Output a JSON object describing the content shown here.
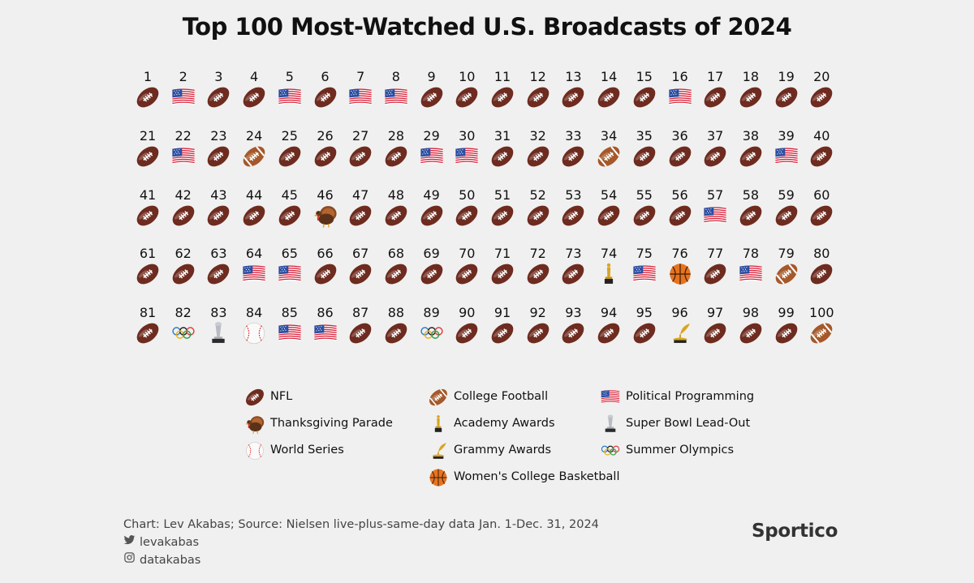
{
  "chart_data": {
    "type": "table",
    "title": "Top 100 Most-Watched U.S. Broadcasts of 2024",
    "ranks": [
      {
        "rank": "1",
        "category": "nfl"
      },
      {
        "rank": "2",
        "category": "political"
      },
      {
        "rank": "3",
        "category": "nfl"
      },
      {
        "rank": "4",
        "category": "nfl"
      },
      {
        "rank": "5",
        "category": "political"
      },
      {
        "rank": "6",
        "category": "nfl"
      },
      {
        "rank": "7",
        "category": "political"
      },
      {
        "rank": "8",
        "category": "political"
      },
      {
        "rank": "9",
        "category": "nfl"
      },
      {
        "rank": "10",
        "category": "nfl"
      },
      {
        "rank": "11",
        "category": "nfl"
      },
      {
        "rank": "12",
        "category": "nfl"
      },
      {
        "rank": "13",
        "category": "nfl"
      },
      {
        "rank": "14",
        "category": "nfl"
      },
      {
        "rank": "15",
        "category": "nfl"
      },
      {
        "rank": "16",
        "category": "political"
      },
      {
        "rank": "17",
        "category": "nfl"
      },
      {
        "rank": "18",
        "category": "nfl"
      },
      {
        "rank": "19",
        "category": "nfl"
      },
      {
        "rank": "20",
        "category": "nfl"
      },
      {
        "rank": "21",
        "category": "nfl"
      },
      {
        "rank": "22",
        "category": "political"
      },
      {
        "rank": "23",
        "category": "nfl"
      },
      {
        "rank": "24",
        "category": "college_football"
      },
      {
        "rank": "25",
        "category": "nfl"
      },
      {
        "rank": "26",
        "category": "nfl"
      },
      {
        "rank": "27",
        "category": "nfl"
      },
      {
        "rank": "28",
        "category": "nfl"
      },
      {
        "rank": "29",
        "category": "political"
      },
      {
        "rank": "30",
        "category": "political"
      },
      {
        "rank": "31",
        "category": "nfl"
      },
      {
        "rank": "32",
        "category": "nfl"
      },
      {
        "rank": "33",
        "category": "nfl"
      },
      {
        "rank": "34",
        "category": "college_football"
      },
      {
        "rank": "35",
        "category": "nfl"
      },
      {
        "rank": "36",
        "category": "nfl"
      },
      {
        "rank": "37",
        "category": "nfl"
      },
      {
        "rank": "38",
        "category": "nfl"
      },
      {
        "rank": "39",
        "category": "political"
      },
      {
        "rank": "40",
        "category": "nfl"
      },
      {
        "rank": "41",
        "category": "nfl"
      },
      {
        "rank": "42",
        "category": "nfl"
      },
      {
        "rank": "43",
        "category": "nfl"
      },
      {
        "rank": "44",
        "category": "nfl"
      },
      {
        "rank": "45",
        "category": "nfl"
      },
      {
        "rank": "46",
        "category": "thanksgiving"
      },
      {
        "rank": "47",
        "category": "nfl"
      },
      {
        "rank": "48",
        "category": "nfl"
      },
      {
        "rank": "49",
        "category": "nfl"
      },
      {
        "rank": "50",
        "category": "nfl"
      },
      {
        "rank": "51",
        "category": "nfl"
      },
      {
        "rank": "52",
        "category": "nfl"
      },
      {
        "rank": "53",
        "category": "nfl"
      },
      {
        "rank": "54",
        "category": "nfl"
      },
      {
        "rank": "55",
        "category": "nfl"
      },
      {
        "rank": "56",
        "category": "nfl"
      },
      {
        "rank": "57",
        "category": "political"
      },
      {
        "rank": "58",
        "category": "nfl"
      },
      {
        "rank": "59",
        "category": "nfl"
      },
      {
        "rank": "60",
        "category": "nfl"
      },
      {
        "rank": "61",
        "category": "nfl"
      },
      {
        "rank": "62",
        "category": "nfl"
      },
      {
        "rank": "63",
        "category": "nfl"
      },
      {
        "rank": "64",
        "category": "political"
      },
      {
        "rank": "65",
        "category": "political"
      },
      {
        "rank": "66",
        "category": "nfl"
      },
      {
        "rank": "67",
        "category": "nfl"
      },
      {
        "rank": "68",
        "category": "nfl"
      },
      {
        "rank": "69",
        "category": "nfl"
      },
      {
        "rank": "70",
        "category": "nfl"
      },
      {
        "rank": "71",
        "category": "nfl"
      },
      {
        "rank": "72",
        "category": "nfl"
      },
      {
        "rank": "73",
        "category": "nfl"
      },
      {
        "rank": "74",
        "category": "academy"
      },
      {
        "rank": "75",
        "category": "political"
      },
      {
        "rank": "76",
        "category": "womens_basketball"
      },
      {
        "rank": "77",
        "category": "nfl"
      },
      {
        "rank": "78",
        "category": "political"
      },
      {
        "rank": "79",
        "category": "college_football"
      },
      {
        "rank": "80",
        "category": "nfl"
      },
      {
        "rank": "81",
        "category": "nfl"
      },
      {
        "rank": "82",
        "category": "olympics"
      },
      {
        "rank": "83",
        "category": "super_bowl_leadout"
      },
      {
        "rank": "84",
        "category": "world_series"
      },
      {
        "rank": "85",
        "category": "political"
      },
      {
        "rank": "86",
        "category": "political"
      },
      {
        "rank": "87",
        "category": "nfl"
      },
      {
        "rank": "88",
        "category": "nfl"
      },
      {
        "rank": "89",
        "category": "olympics"
      },
      {
        "rank": "90",
        "category": "nfl"
      },
      {
        "rank": "91",
        "category": "nfl"
      },
      {
        "rank": "92",
        "category": "nfl"
      },
      {
        "rank": "93",
        "category": "nfl"
      },
      {
        "rank": "94",
        "category": "nfl"
      },
      {
        "rank": "95",
        "category": "nfl"
      },
      {
        "rank": "96",
        "category": "grammy"
      },
      {
        "rank": "97",
        "category": "nfl"
      },
      {
        "rank": "98",
        "category": "nfl"
      },
      {
        "rank": "99",
        "category": "nfl"
      },
      {
        "rank": "100",
        "category": "college_football"
      }
    ],
    "legend": [
      {
        "key": "nfl",
        "label": "NFL",
        "icon": "nfl-football-icon"
      },
      {
        "key": "thanksgiving",
        "label": "Thanksgiving Parade",
        "icon": "turkey-icon"
      },
      {
        "key": "world_series",
        "label": "World Series",
        "icon": "baseball-icon"
      },
      {
        "key": "college_football",
        "label": "College Football",
        "icon": "college-football-icon"
      },
      {
        "key": "academy",
        "label": "Academy Awards",
        "icon": "oscar-statuette-icon"
      },
      {
        "key": "grammy",
        "label": "Grammy Awards",
        "icon": "grammy-gramophone-icon"
      },
      {
        "key": "womens_basketball",
        "label": "Women's College Basketball",
        "icon": "basketball-icon"
      },
      {
        "key": "political",
        "label": "Political Programming",
        "icon": "us-flag-icon"
      },
      {
        "key": "super_bowl_leadout",
        "label": "Super Bowl Lead-Out",
        "icon": "lombardi-trophy-icon"
      },
      {
        "key": "olympics",
        "label": "Summer Olympics",
        "icon": "olympic-rings-icon"
      }
    ]
  },
  "credits": {
    "source": "Chart: Lev Akabas; Source: Nielsen live-plus-same-day data Jan. 1-Dec. 31, 2024",
    "twitter": "levakabas",
    "instagram": "datakabas"
  },
  "brand": "Sportico"
}
